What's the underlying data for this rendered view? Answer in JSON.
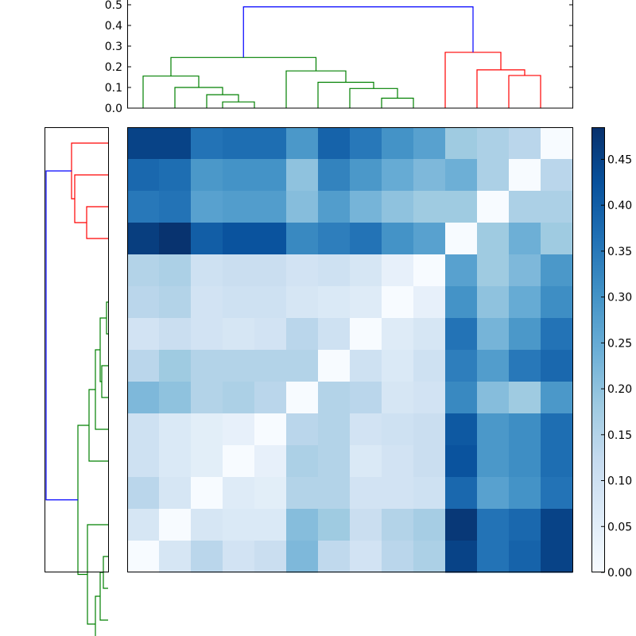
{
  "chart_data": [
    {
      "type": "dendrogram",
      "orientation": "top",
      "title": "",
      "xlabel": "",
      "ylabel": "",
      "ylim": [
        0,
        0.5
      ],
      "ytick_values": [
        0,
        0.1,
        0.2,
        0.3,
        0.4,
        0.5
      ],
      "ytick_labels": [
        "0.0",
        "0.1",
        "0.2",
        "0.3",
        "0.4",
        "0.5"
      ],
      "leaf_count": 14,
      "link_colors": {
        "green": "#008000",
        "red": "#ff0000",
        "blue": "#0000ff"
      },
      "links": [
        {
          "left": 0.5,
          "right": 1.5,
          "left_h": 0,
          "right_h": 0,
          "h": 0.03,
          "color": "green"
        },
        {
          "left": 0.0,
          "right": 1.0,
          "left_h": 0,
          "right_h": 0.03,
          "h": 0.065,
          "color": "green"
        },
        {
          "left": -1.0,
          "right": 0.5,
          "left_h": 0,
          "right_h": 0.065,
          "h": 0.1,
          "color": "green"
        },
        {
          "left": -2.0,
          "right": -0.25,
          "left_h": 0,
          "right_h": 0.1,
          "h": 0.155,
          "color": "green"
        },
        {
          "left": 5.5,
          "right": 6.5,
          "left_h": 0,
          "right_h": 0,
          "h": 0.048,
          "color": "green"
        },
        {
          "left": 4.5,
          "right": 6.0,
          "left_h": 0,
          "right_h": 0.048,
          "h": 0.095,
          "color": "green"
        },
        {
          "left": 3.5,
          "right": 5.25,
          "left_h": 0,
          "right_h": 0.095,
          "h": 0.125,
          "color": "green"
        },
        {
          "left": 2.5,
          "right": 4.375,
          "left_h": 0,
          "right_h": 0.125,
          "h": 0.18,
          "color": "green"
        },
        {
          "left": -1.125,
          "right": 3.4375,
          "left_h": 0.155,
          "right_h": 0.18,
          "h": 0.245,
          "color": "green"
        },
        {
          "left": 9.5,
          "right": 10.5,
          "left_h": 0,
          "right_h": 0,
          "h": 0.158,
          "color": "red"
        },
        {
          "left": 8.5,
          "right": 10.0,
          "left_h": 0,
          "right_h": 0.158,
          "h": 0.185,
          "color": "red"
        },
        {
          "left": 7.5,
          "right": 9.25,
          "left_h": 0,
          "right_h": 0.185,
          "h": 0.27,
          "color": "red"
        },
        {
          "left": 1.15625,
          "right": 8.375,
          "left_h": 0.245,
          "right_h": 0.27,
          "h": 0.49,
          "color": "blue"
        }
      ]
    },
    {
      "type": "dendrogram",
      "orientation": "left",
      "title": "",
      "xlabel": "",
      "ylabel": "",
      "ticks_shown": false,
      "leaf_count": 14,
      "link_colors": {
        "green": "#008000",
        "red": "#ff0000",
        "blue": "#0000ff"
      },
      "links": [
        {
          "a": 0.5,
          "b": 1.5,
          "a_h": 0,
          "b_h": 0,
          "h": 0.01,
          "color": "green"
        },
        {
          "a": 2.5,
          "b": 3.5,
          "a_h": 0,
          "b_h": 0,
          "h": 0.04,
          "color": "green"
        },
        {
          "a": 1.0,
          "b": 3.0,
          "a_h": 0.01,
          "b_h": 0.04,
          "h": 0.05,
          "color": "green"
        },
        {
          "a": 2.0,
          "b": 4.5,
          "a_h": 0.05,
          "b_h": 0,
          "h": 0.08,
          "color": "green"
        },
        {
          "a": 3.25,
          "b": 5.5,
          "a_h": 0.08,
          "b_h": 0,
          "h": 0.12,
          "color": "green"
        },
        {
          "a": 8.5,
          "b": 9.5,
          "a_h": 0,
          "b_h": 0,
          "h": 0.03,
          "color": "green"
        },
        {
          "a": 9.0,
          "b": 10.5,
          "a_h": 0.03,
          "b_h": 0,
          "h": 0.05,
          "color": "green"
        },
        {
          "a": 9.75,
          "b": 11.5,
          "a_h": 0.05,
          "b_h": 0,
          "h": 0.08,
          "color": "green"
        },
        {
          "a": 7.5,
          "b": 10.625,
          "a_h": 0,
          "b_h": 0.08,
          "h": 0.13,
          "color": "green"
        },
        {
          "a": 4.375,
          "b": 9.0625,
          "a_h": 0.12,
          "b_h": 0.13,
          "h": 0.19,
          "color": "green"
        },
        {
          "a": -2.5,
          "b": -1.5,
          "a_h": 0,
          "b_h": 0,
          "h": 0.135,
          "color": "red"
        },
        {
          "a": -3.5,
          "b": -2.0,
          "a_h": 0,
          "b_h": 0.135,
          "h": 0.21,
          "color": "red"
        },
        {
          "a": -4.5,
          "b": -2.75,
          "a_h": 0,
          "b_h": 0.21,
          "h": 0.23,
          "color": "red"
        },
        {
          "a": -3.625,
          "b": 6.71875,
          "a_h": 0.23,
          "b_h": 0.19,
          "h": 0.39,
          "color": "blue"
        }
      ]
    },
    {
      "type": "heatmap",
      "title": "",
      "xlabel": "",
      "ylabel": "",
      "colormap": "Blues",
      "vmin": 0,
      "vmax": 0.485,
      "colormap_stops": [
        [
          0.0,
          "#f7fbff"
        ],
        [
          0.125,
          "#deebf7"
        ],
        [
          0.25,
          "#c6dbef"
        ],
        [
          0.375,
          "#9ecae1"
        ],
        [
          0.5,
          "#6baed6"
        ],
        [
          0.625,
          "#4292c6"
        ],
        [
          0.75,
          "#2171b5"
        ],
        [
          0.875,
          "#08519c"
        ],
        [
          1.0,
          "#08306b"
        ]
      ],
      "rows": 14,
      "cols": 14,
      "values": [
        [
          0.45,
          0.45,
          0.36,
          0.37,
          0.37,
          0.29,
          0.39,
          0.35,
          0.3,
          0.27,
          0.18,
          0.16,
          0.14,
          0.0
        ],
        [
          0.38,
          0.37,
          0.29,
          0.3,
          0.3,
          0.2,
          0.33,
          0.29,
          0.25,
          0.22,
          0.24,
          0.16,
          0.0,
          0.14
        ],
        [
          0.35,
          0.36,
          0.27,
          0.28,
          0.28,
          0.21,
          0.28,
          0.23,
          0.2,
          0.18,
          0.18,
          0.0,
          0.16,
          0.16
        ],
        [
          0.46,
          0.48,
          0.4,
          0.42,
          0.42,
          0.32,
          0.34,
          0.36,
          0.3,
          0.27,
          0.0,
          0.18,
          0.24,
          0.18
        ],
        [
          0.15,
          0.16,
          0.1,
          0.11,
          0.11,
          0.09,
          0.1,
          0.08,
          0.04,
          0.0,
          0.27,
          0.18,
          0.22,
          0.29
        ],
        [
          0.14,
          0.15,
          0.09,
          0.1,
          0.1,
          0.08,
          0.07,
          0.06,
          0.0,
          0.04,
          0.3,
          0.2,
          0.25,
          0.31
        ],
        [
          0.09,
          0.11,
          0.09,
          0.08,
          0.09,
          0.14,
          0.1,
          0.0,
          0.06,
          0.08,
          0.36,
          0.23,
          0.29,
          0.36
        ],
        [
          0.14,
          0.18,
          0.15,
          0.15,
          0.15,
          0.15,
          0.0,
          0.1,
          0.07,
          0.1,
          0.34,
          0.28,
          0.35,
          0.38
        ],
        [
          0.22,
          0.2,
          0.15,
          0.16,
          0.14,
          0.0,
          0.15,
          0.14,
          0.08,
          0.09,
          0.32,
          0.21,
          0.18,
          0.29
        ],
        [
          0.1,
          0.07,
          0.05,
          0.04,
          0.0,
          0.14,
          0.15,
          0.09,
          0.1,
          0.11,
          0.41,
          0.29,
          0.31,
          0.37
        ],
        [
          0.1,
          0.07,
          0.05,
          0.0,
          0.04,
          0.16,
          0.15,
          0.07,
          0.09,
          0.11,
          0.42,
          0.29,
          0.31,
          0.37
        ],
        [
          0.14,
          0.08,
          0.0,
          0.06,
          0.05,
          0.15,
          0.15,
          0.09,
          0.09,
          0.1,
          0.38,
          0.27,
          0.3,
          0.36
        ],
        [
          0.08,
          0.0,
          0.08,
          0.07,
          0.07,
          0.21,
          0.18,
          0.11,
          0.15,
          0.17,
          0.47,
          0.36,
          0.38,
          0.45
        ],
        [
          0.0,
          0.08,
          0.14,
          0.09,
          0.11,
          0.22,
          0.13,
          0.09,
          0.14,
          0.16,
          0.45,
          0.36,
          0.39,
          0.45
        ]
      ],
      "colorbar": {
        "tick_values": [
          0,
          0.05,
          0.1,
          0.15,
          0.2,
          0.25,
          0.3,
          0.35,
          0.4,
          0.45
        ],
        "tick_labels": [
          "0.00",
          "0.05",
          "0.10",
          "0.15",
          "0.20",
          "0.25",
          "0.30",
          "0.35",
          "0.40",
          "0.45"
        ]
      }
    }
  ]
}
